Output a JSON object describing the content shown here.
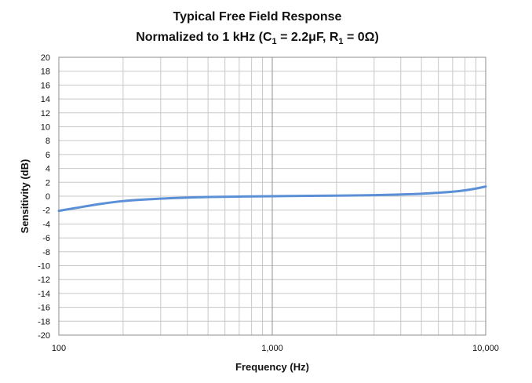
{
  "chart_data": {
    "type": "line",
    "title": "Typical Free Field Response",
    "subtitle": {
      "prefix": "Normalized to 1 kHz (C",
      "sub1": "1",
      "middle": " = 2.2μF, R",
      "sub2": "1",
      "suffix": " = 0Ω)"
    },
    "xlabel": "Frequency (Hz)",
    "ylabel": "Sensitivity (dB)",
    "x_scale": "log",
    "xlim": [
      100,
      10000
    ],
    "ylim": [
      -20,
      20
    ],
    "x_tick_labels": [
      {
        "value": 100,
        "label": "100"
      },
      {
        "value": 1000,
        "label": "1,000"
      },
      {
        "value": 10000,
        "label": "10,000"
      }
    ],
    "y_ticks": [
      20,
      18,
      16,
      14,
      12,
      10,
      8,
      6,
      4,
      2,
      0,
      -2,
      -4,
      -6,
      -8,
      -10,
      -12,
      -14,
      -16,
      -18,
      -20
    ],
    "grid": true,
    "series": [
      {
        "color": "#5b8fd6",
        "x": [
          100,
          120,
          150,
          200,
          300,
          400,
          500,
          700,
          1000,
          1500,
          2000,
          3000,
          4000,
          5000,
          6000,
          7000,
          8000,
          9000,
          10000
        ],
        "y": [
          -2.1,
          -1.7,
          -1.2,
          -0.7,
          -0.35,
          -0.2,
          -0.12,
          -0.05,
          0.0,
          0.05,
          0.08,
          0.15,
          0.25,
          0.35,
          0.5,
          0.65,
          0.85,
          1.1,
          1.4
        ]
      }
    ]
  }
}
